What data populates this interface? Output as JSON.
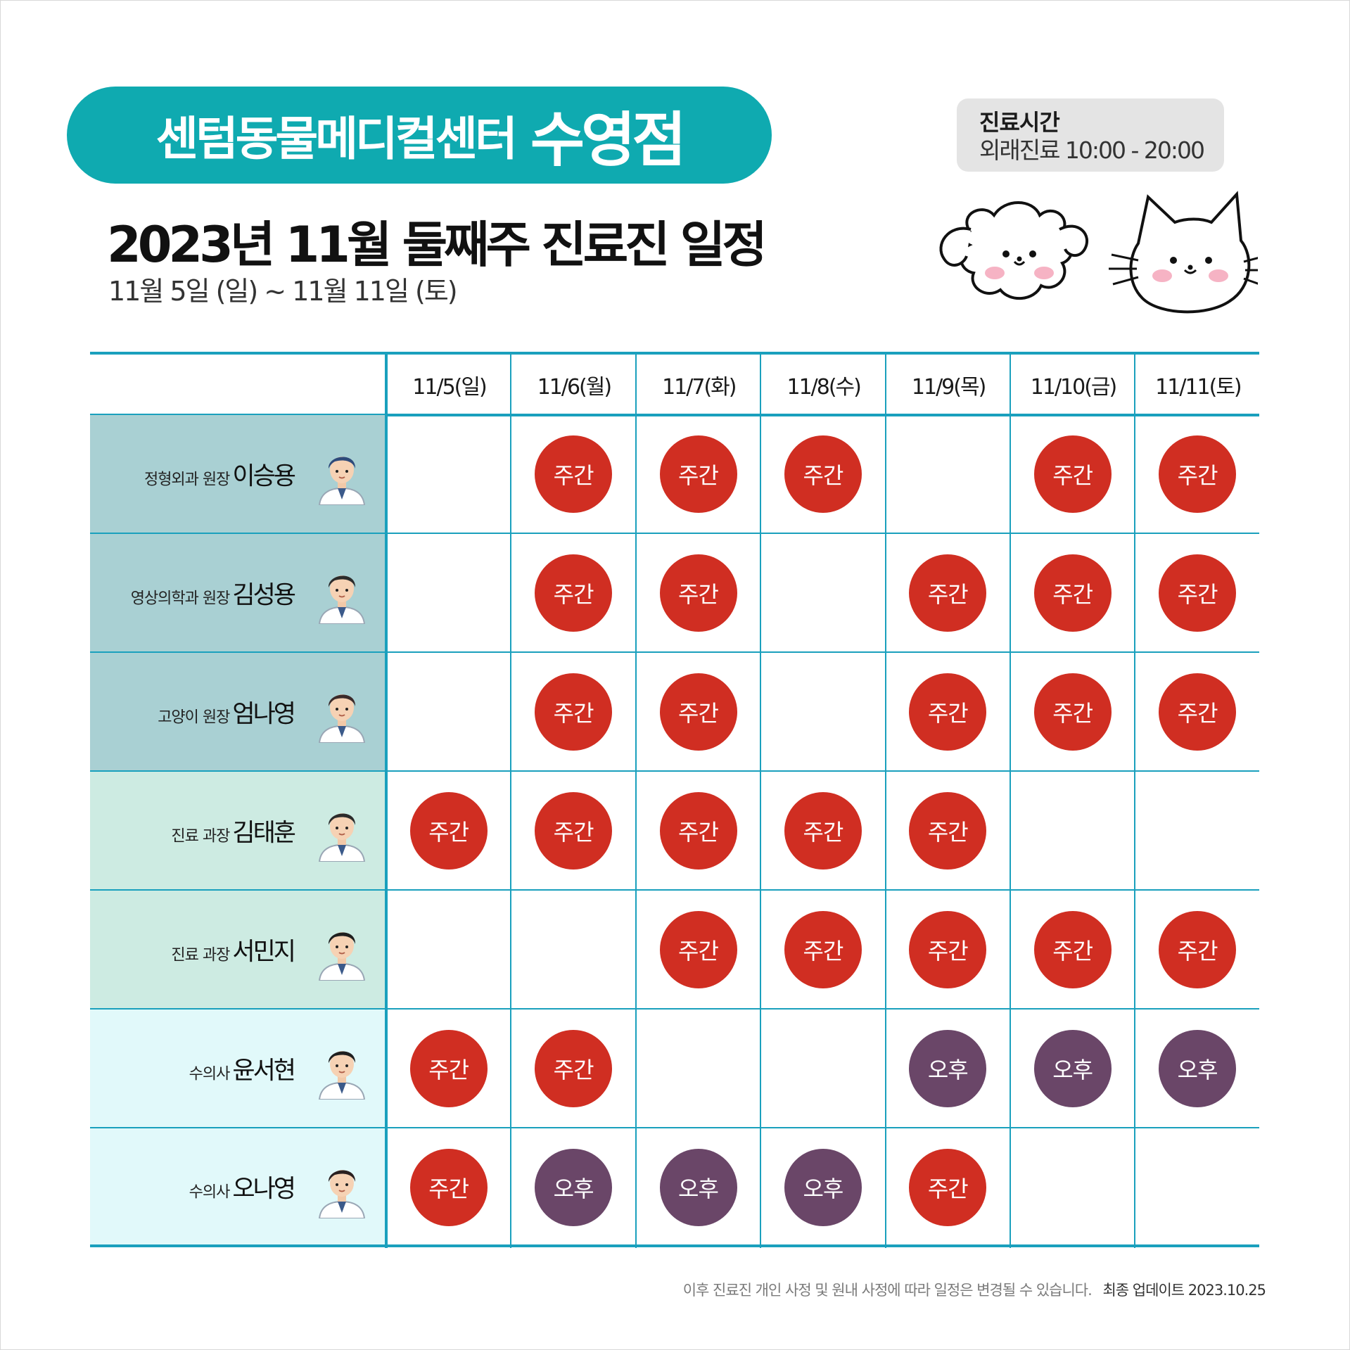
{
  "header": {
    "clinic_name": "센텀동물메디컬센터",
    "branch": "수영점",
    "title": "2023년 11월 둘째주 진료진 일정",
    "date_range": "11월 5일 (일) ~ 11월 11일 (토)"
  },
  "hours": {
    "label": "진료시간",
    "value": "외래진료 10:00 - 20:00"
  },
  "legend": {
    "day_label": "주간",
    "pm_label": "오후"
  },
  "days": [
    "11/5(일)",
    "11/6(월)",
    "11/7(화)",
    "11/8(수)",
    "11/9(목)",
    "11/10(금)",
    "11/11(토)"
  ],
  "doctors": [
    {
      "title": "정형외과 원장",
      "name": "이승용",
      "row_color": "#a9d0d3",
      "avatar_color": "#2e4a7a",
      "schedule": [
        "",
        "주간",
        "주간",
        "주간",
        "",
        "주간",
        "주간"
      ]
    },
    {
      "title": "영상의학과 원장",
      "name": "김성용",
      "row_color": "#a9d0d3",
      "avatar_color": "#2b2b2b",
      "schedule": [
        "",
        "주간",
        "주간",
        "",
        "주간",
        "주간",
        "주간"
      ]
    },
    {
      "title": "고양이 원장",
      "name": "엄나영",
      "row_color": "#a9d0d3",
      "avatar_color": "#3a2a2a",
      "schedule": [
        "",
        "주간",
        "주간",
        "",
        "주간",
        "주간",
        "주간"
      ]
    },
    {
      "title": "진료 과장",
      "name": "김태훈",
      "row_color": "#cdebe2",
      "avatar_color": "#2b2b2b",
      "schedule": [
        "주간",
        "주간",
        "주간",
        "주간",
        "주간",
        "",
        ""
      ]
    },
    {
      "title": "진료 과장",
      "name": "서민지",
      "row_color": "#cdebe2",
      "avatar_color": "#1f1f1f",
      "schedule": [
        "",
        "",
        "주간",
        "주간",
        "주간",
        "주간",
        "주간"
      ]
    },
    {
      "title": "수의사",
      "name": "윤서현",
      "row_color": "#e1f9fa",
      "avatar_color": "#1f1f1f",
      "schedule": [
        "주간",
        "주간",
        "",
        "",
        "오후",
        "오후",
        "오후"
      ]
    },
    {
      "title": "수의사",
      "name": "오나영",
      "row_color": "#e1f9fa",
      "avatar_color": "#2a2020",
      "schedule": [
        "주간",
        "오후",
        "오후",
        "오후",
        "주간",
        "",
        ""
      ]
    }
  ],
  "footer": {
    "notice": "이후 진료진 개인 사정 및 원내 사정에 따라 일정은 변경될 수 있습니다.",
    "update": "최종 업데이트  2023.10.25"
  },
  "colors": {
    "brand": "#0faab0",
    "grid": "#1aa0bd",
    "day_shift": "#d02e22",
    "pm_shift": "#6a4668"
  }
}
